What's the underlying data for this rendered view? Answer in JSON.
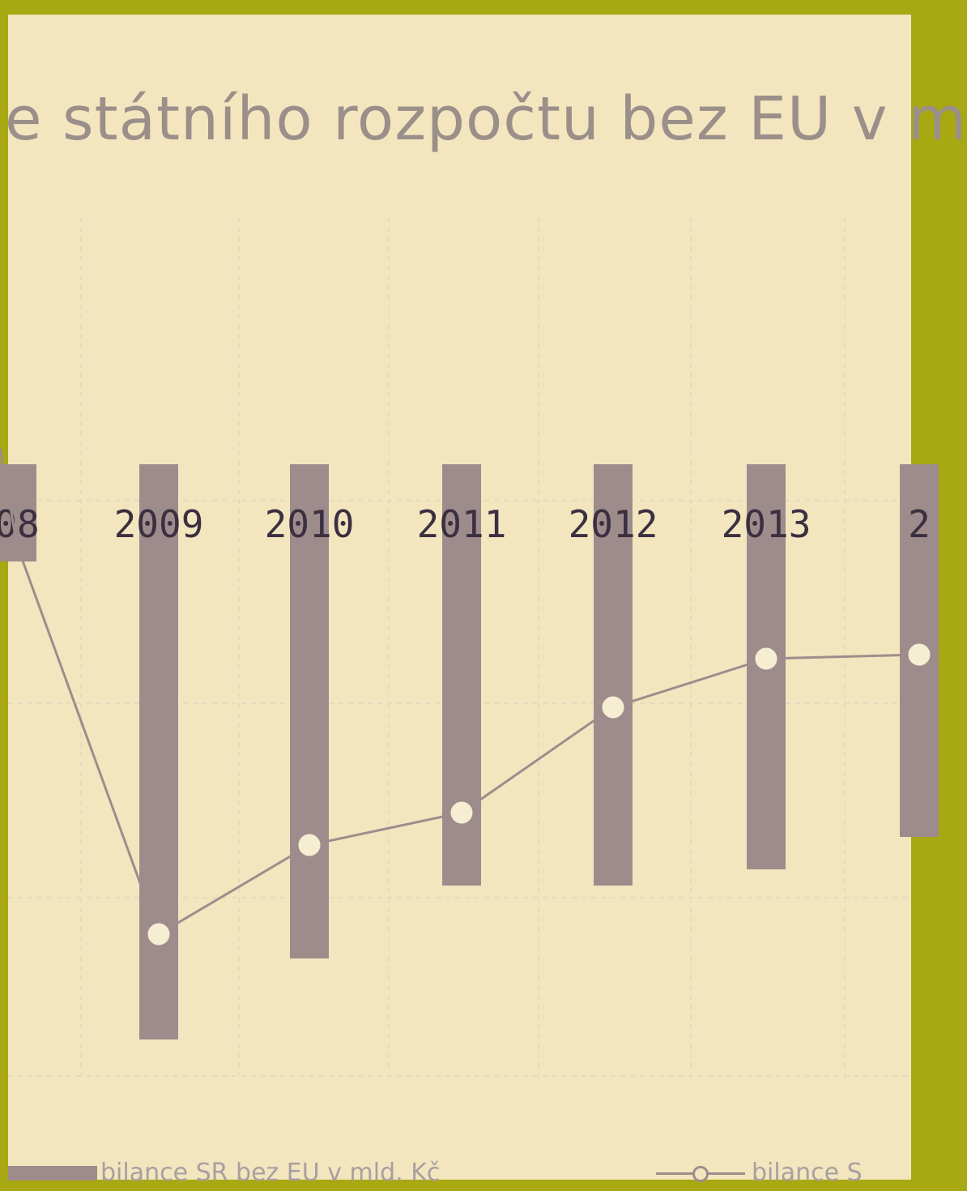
{
  "colors": {
    "frame": "#a8a812",
    "background": "#f3e6bf",
    "bar": "#9e8c8c",
    "line": "#9e8c8c",
    "marker_fill": "#f6eed3",
    "grid": "#e6dac0",
    "tick_label": "#3a3040",
    "title": "#9b8f8a"
  },
  "chart_data": {
    "type": "bar",
    "title": "e státního rozpočtu bez EU v m",
    "categories": [
      "08",
      "2009",
      "2010",
      "2011",
      "2012",
      "2013",
      "2"
    ],
    "grid": true,
    "bar_series": {
      "name": "bilance SR bez EU v mld. Kč",
      "values": [
        -12,
        -71,
        -61,
        -52,
        -52,
        -50,
        -46
      ]
    },
    "line_series": {
      "name": "bilance S",
      "values": [
        -10,
        -58,
        -47,
        -43,
        -30,
        -24,
        -23.5
      ]
    },
    "ylim": [
      -80,
      40
    ]
  },
  "legend": {
    "bar_label": "bilance SR bez EU v mld. Kč",
    "line_label": "bilance S"
  }
}
